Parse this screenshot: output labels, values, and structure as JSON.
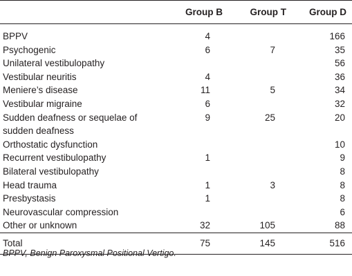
{
  "table": {
    "headers": [
      "",
      "Group B",
      "Group T",
      "Group D"
    ],
    "rows": [
      {
        "label": "BPPV",
        "b": "4",
        "t": "",
        "d": "166"
      },
      {
        "label": "Psychogenic",
        "b": "6",
        "t": "7",
        "d": "35"
      },
      {
        "label": "Unilateral vestibulopathy",
        "b": "",
        "t": "",
        "d": "56"
      },
      {
        "label": "Vestibular neuritis",
        "b": "4",
        "t": "",
        "d": "36"
      },
      {
        "label": "Meniere’s disease",
        "b": "11",
        "t": "5",
        "d": "34"
      },
      {
        "label": "Vestibular migraine",
        "b": "6",
        "t": "",
        "d": "32"
      },
      {
        "label": "Sudden deafness or sequelae of sudden deafness",
        "b": "9",
        "t": "25",
        "d": "20"
      },
      {
        "label": "Orthostatic dysfunction",
        "b": "",
        "t": "",
        "d": "10"
      },
      {
        "label": "Recurrent vestibulopathy",
        "b": "1",
        "t": "",
        "d": "9"
      },
      {
        "label": "Bilateral vestibulopathy",
        "b": "",
        "t": "",
        "d": "8"
      },
      {
        "label": "Head trauma",
        "b": "1",
        "t": "3",
        "d": "8"
      },
      {
        "label": "Presbystasis",
        "b": "1",
        "t": "",
        "d": "8"
      },
      {
        "label": "Neurovascular compression",
        "b": "",
        "t": "",
        "d": "6"
      },
      {
        "label": "Other or unknown",
        "b": "32",
        "t": "105",
        "d": "88"
      }
    ],
    "total": {
      "label": "Total",
      "b": "75",
      "t": "145",
      "d": "516"
    }
  },
  "footnote": "BPPV, Benign Paroxysmal Positional Vertigo."
}
